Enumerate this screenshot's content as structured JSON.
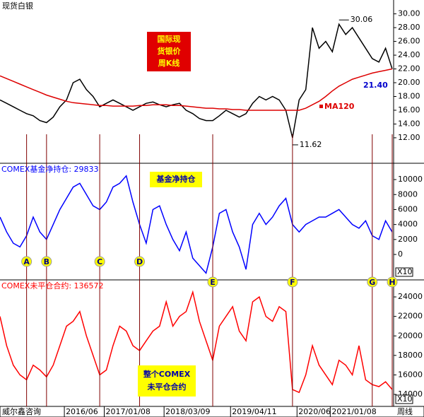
{
  "header": {
    "title": "现货白银",
    "source": "威尔鑫咨询",
    "period": "周线"
  },
  "chart_data": [
    {
      "type": "line",
      "title_lines": [
        "国际现",
        "货银价",
        "周K线"
      ],
      "ylim": [
        8.4,
        31.5
      ],
      "yticks": [
        {
          "value": 12,
          "label": "12.00"
        },
        {
          "value": 14,
          "label": "14.00"
        },
        {
          "value": 16,
          "label": "16.00"
        },
        {
          "value": 18,
          "label": "18.00"
        },
        {
          "value": 20,
          "label": "20.00"
        },
        {
          "value": 22,
          "label": "22.00"
        },
        {
          "value": 24,
          "label": "24.00"
        },
        {
          "value": 26,
          "label": "26.00"
        },
        {
          "value": 28,
          "label": "28.00"
        },
        {
          "value": 30,
          "label": "30.00"
        }
      ],
      "series": [
        {
          "name": "周K线",
          "color": "#000000",
          "values": [
            17.5,
            17,
            16.5,
            16,
            15.5,
            15.2,
            14.5,
            14.2,
            15,
            16.5,
            17.5,
            20,
            20.5,
            19,
            18,
            16.5,
            17,
            17.5,
            17,
            16.5,
            16,
            16.5,
            17,
            17.2,
            16.8,
            16.5,
            16.8,
            17,
            16,
            15.5,
            14.8,
            14.5,
            14.5,
            15.2,
            16,
            15.5,
            15,
            15.5,
            17,
            18,
            17.5,
            18,
            17.5,
            16,
            12,
            17.5,
            19,
            28,
            25,
            26,
            24.5,
            28.5,
            27,
            28,
            26.5,
            25,
            23.5,
            23,
            25,
            22
          ]
        },
        {
          "name": "MA120",
          "color": "#dd0000",
          "values": [
            21,
            20.6,
            20.2,
            19.8,
            19.4,
            19,
            18.6,
            18.2,
            17.9,
            17.6,
            17.3,
            17.1,
            17,
            16.9,
            16.8,
            16.7,
            16.7,
            16.6,
            16.6,
            16.6,
            16.6,
            16.7,
            16.7,
            16.8,
            16.8,
            16.8,
            16.7,
            16.7,
            16.6,
            16.5,
            16.4,
            16.3,
            16.3,
            16.2,
            16.2,
            16.1,
            16.1,
            16,
            16,
            16,
            16,
            16,
            16,
            16,
            16,
            16,
            16.3,
            16.8,
            17.3,
            18,
            18.8,
            19.5,
            20,
            20.5,
            20.8,
            21.1,
            21.4,
            21.6,
            21.8,
            22
          ]
        }
      ],
      "annotations": [
        "30.06",
        "11.62",
        "21.40"
      ]
    },
    {
      "type": "line",
      "title": "COMEX基金净持仓: 29833",
      "box_label": "基金净持仓",
      "unit_label": "X10",
      "ylim": [
        -3300,
        11800
      ],
      "yticks": [
        0,
        2000,
        4000,
        6000,
        8000,
        10000
      ],
      "series": [
        {
          "name": "基金净持仓",
          "color": "#0000ff",
          "values": [
            5000,
            3000,
            1500,
            1000,
            2500,
            5000,
            3000,
            2000,
            4000,
            6000,
            7500,
            9000,
            9500,
            8000,
            6500,
            6000,
            7000,
            9000,
            9500,
            10500,
            7000,
            4000,
            1500,
            6000,
            6500,
            4000,
            2000,
            500,
            3000,
            -500,
            -1500,
            -2500,
            1000,
            5500,
            6000,
            3000,
            1000,
            -2000,
            4000,
            5500,
            4000,
            5000,
            6500,
            7500,
            4000,
            3000,
            4000,
            4500,
            5000,
            5000,
            5500,
            6000,
            5000,
            4000,
            3500,
            4500,
            2500,
            2000,
            4500,
            3000
          ]
        }
      ]
    },
    {
      "type": "line",
      "title": "COMEX未平仓合约: 136572",
      "box_lines": [
        "整个COMEX",
        "未平仓合约"
      ],
      "unit_label": "X10",
      "ylim": [
        12770,
        25600
      ],
      "yticks": [
        14000,
        16000,
        18000,
        20000,
        22000,
        24000
      ],
      "categories": [
        null,
        null,
        null,
        null,
        null,
        null,
        null,
        null,
        null,
        null,
        "2016/06",
        null,
        null,
        null,
        null,
        null,
        "2017/01/08",
        null,
        null,
        null,
        null,
        null,
        null,
        null,
        null,
        "2018/03/09",
        null,
        null,
        null,
        null,
        null,
        null,
        null,
        null,
        null,
        "2019/04/11",
        null,
        null,
        null,
        null,
        null,
        null,
        null,
        null,
        null,
        "2020/06",
        null,
        null,
        null,
        null,
        "2021/01/08",
        null,
        null,
        null,
        null,
        null,
        null,
        null,
        null,
        null
      ],
      "series": [
        {
          "name": "未平仓合约",
          "color": "#ff0000",
          "values": [
            22000,
            19000,
            17000,
            16000,
            15500,
            17000,
            16500,
            15800,
            17000,
            19000,
            21000,
            21500,
            22500,
            20000,
            18000,
            16000,
            16500,
            19000,
            21000,
            20500,
            19000,
            18500,
            19500,
            20500,
            21000,
            23500,
            21000,
            22000,
            22500,
            24500,
            21500,
            19500,
            17500,
            21000,
            22000,
            23000,
            20500,
            19500,
            23500,
            24000,
            22000,
            21500,
            23000,
            22500,
            14500,
            14200,
            16000,
            19000,
            17000,
            16000,
            15000,
            17500,
            17000,
            16000,
            19000,
            15500,
            15000,
            14800,
            15300,
            14500
          ]
        }
      ]
    }
  ],
  "markers": [
    {
      "label": "A",
      "index": 4
    },
    {
      "label": "B",
      "index": 7
    },
    {
      "label": "C",
      "index": 15
    },
    {
      "label": "D",
      "index": 21
    },
    {
      "label": "E",
      "index": 32
    },
    {
      "label": "F",
      "index": 44
    },
    {
      "label": "G",
      "index": 56
    },
    {
      "label": "H",
      "index": 59
    }
  ]
}
